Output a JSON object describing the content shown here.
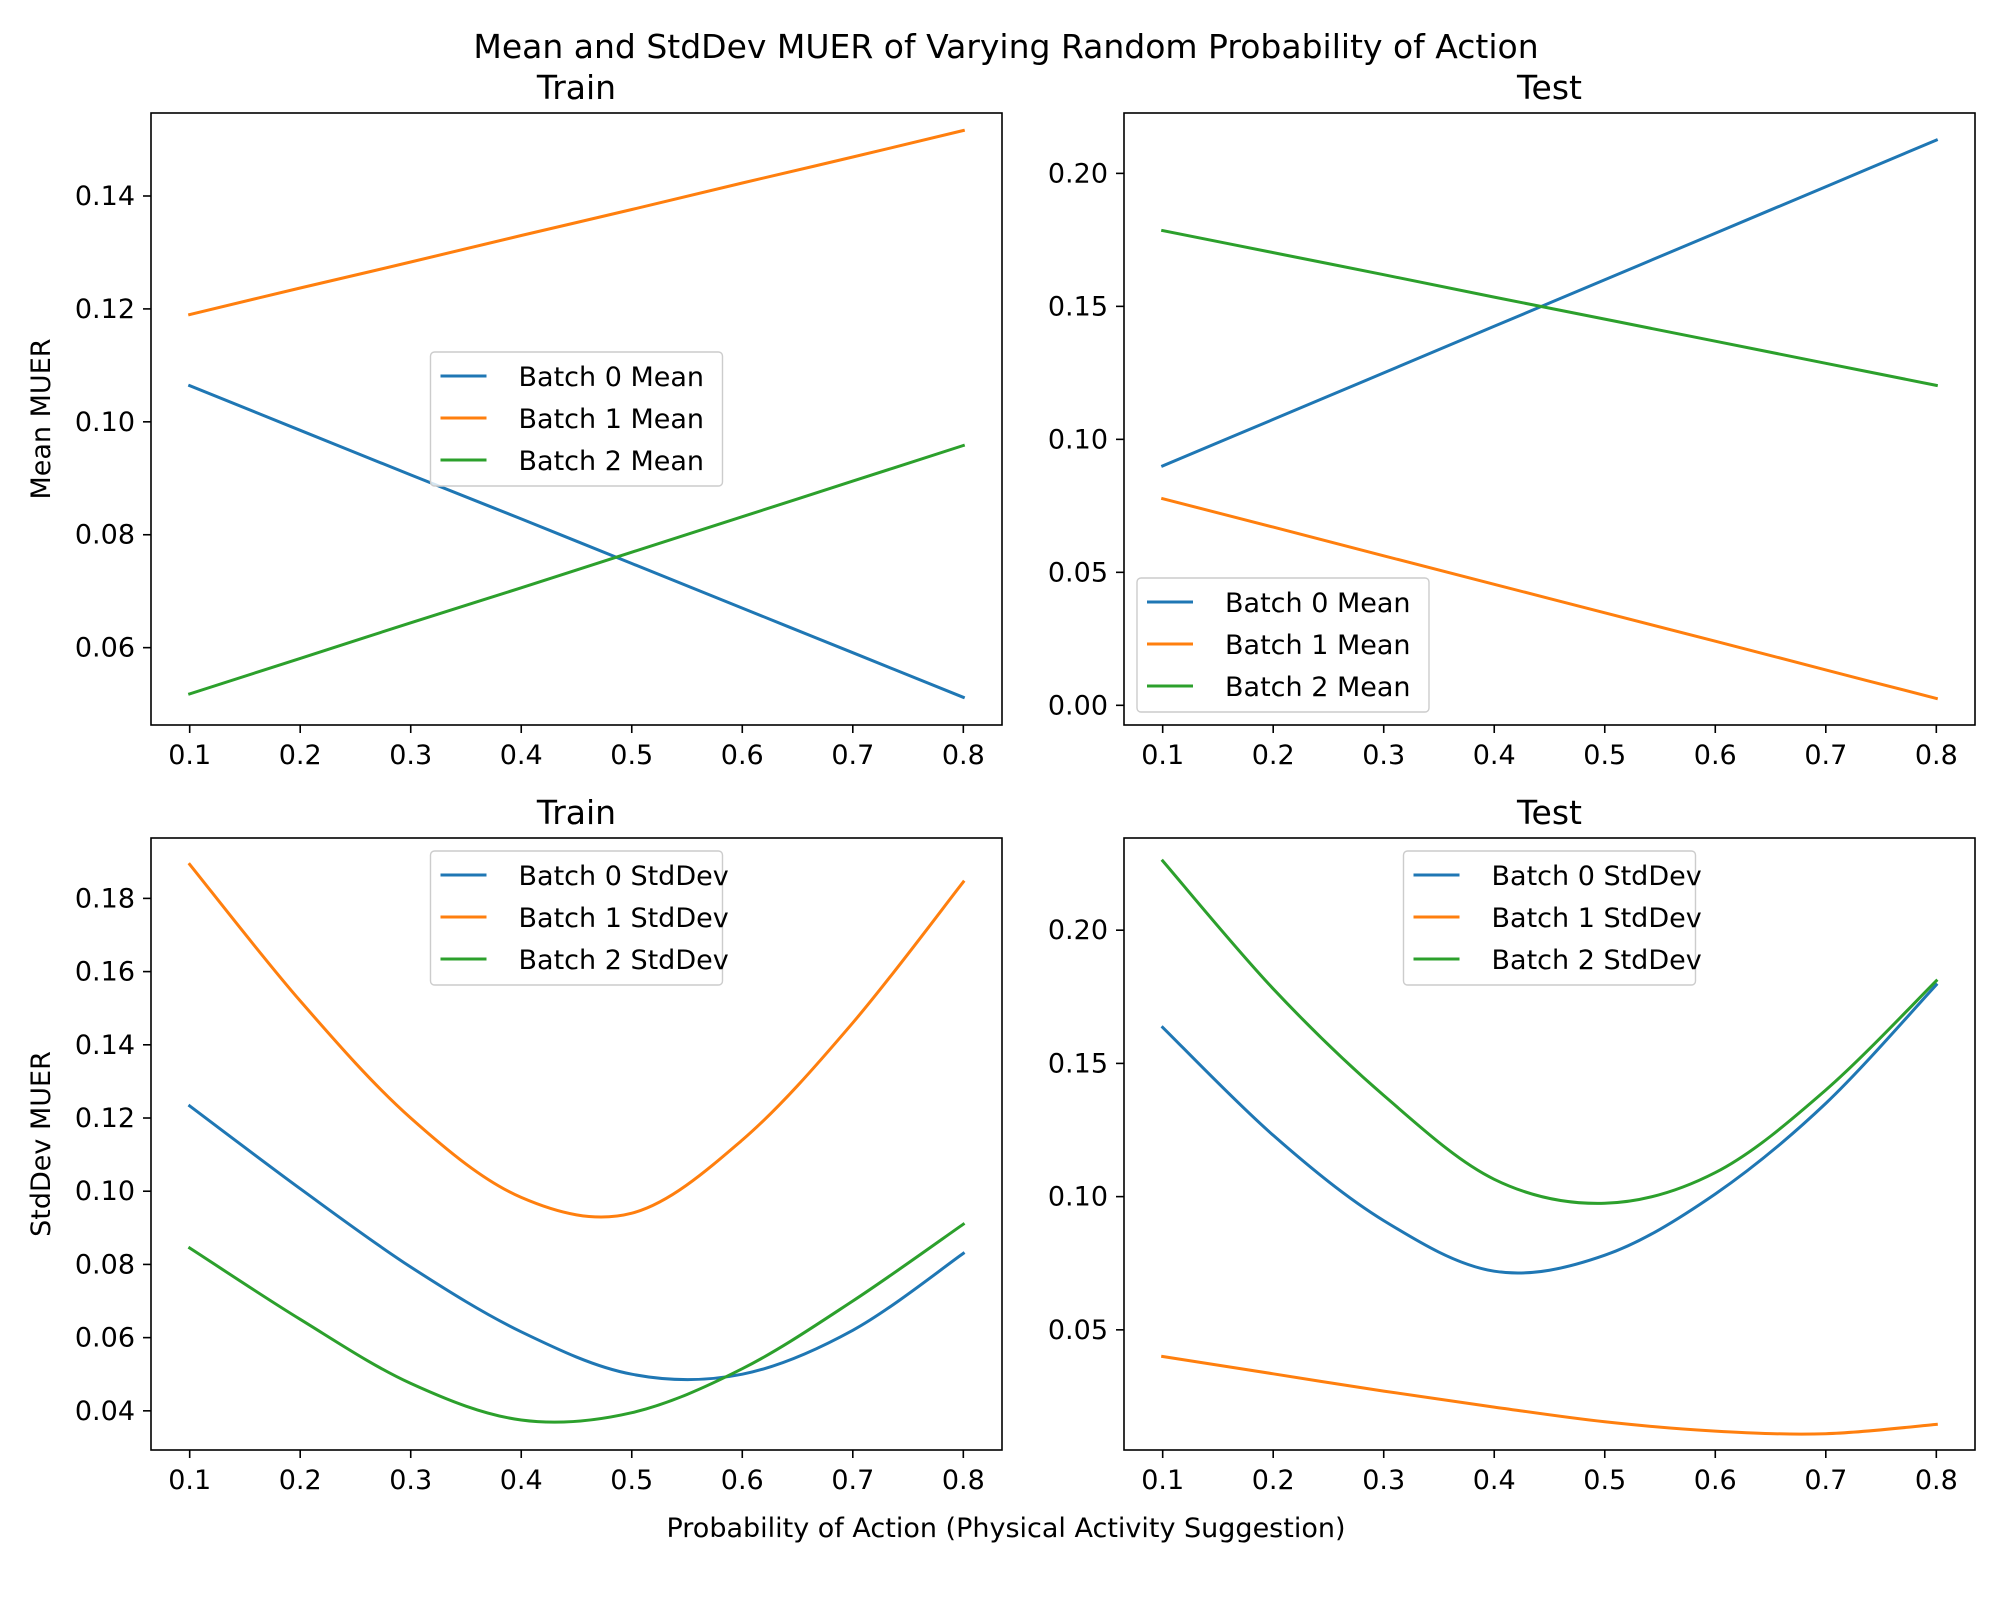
{
  "figure": {
    "suptitle": "Mean and StdDev MUER of Varying Random Probability of Action",
    "xlabel": "Probability of Action (Physical Activity Suggestion)"
  },
  "colors": {
    "batch0": "#1f77b4",
    "batch1": "#ff7f0e",
    "batch2": "#2ca02c"
  },
  "chart_data": [
    {
      "type": "line",
      "title": "Train",
      "ylabel": "Mean MUER",
      "xlim": [
        0.065,
        0.835
      ],
      "ylim": [
        0.0463,
        0.1547
      ],
      "xticks": [
        0.1,
        0.2,
        0.3,
        0.4,
        0.5,
        0.6,
        0.7,
        0.8
      ],
      "yticks": [
        0.06,
        0.08,
        0.1,
        0.12,
        0.14
      ],
      "ytick_labels": [
        "0.06",
        "0.08",
        "0.10",
        "0.12",
        "0.14"
      ],
      "legend_loc": "center",
      "x": [
        0.1,
        0.2,
        0.3,
        0.4,
        0.5,
        0.6,
        0.7,
        0.8
      ],
      "series": [
        {
          "name": "Batch 0 Mean",
          "color": "#1f77b4",
          "values": [
            0.1064,
            0.0985,
            0.0906,
            0.0828,
            0.0749,
            0.067,
            0.0591,
            0.0512
          ]
        },
        {
          "name": "Batch 1 Mean",
          "color": "#ff7f0e",
          "values": [
            0.119,
            0.1237,
            0.1283,
            0.133,
            0.1376,
            0.1423,
            0.1469,
            0.1516
          ]
        },
        {
          "name": "Batch 2 Mean",
          "color": "#2ca02c",
          "values": [
            0.0518,
            0.0581,
            0.0644,
            0.0706,
            0.0769,
            0.0832,
            0.0895,
            0.0958
          ]
        }
      ]
    },
    {
      "type": "line",
      "title": "Test",
      "ylabel": "",
      "xlim": [
        0.065,
        0.835
      ],
      "ylim": [
        -0.0074,
        0.2227
      ],
      "xticks": [
        0.1,
        0.2,
        0.3,
        0.4,
        0.5,
        0.6,
        0.7,
        0.8
      ],
      "yticks": [
        0.0,
        0.05,
        0.1,
        0.15,
        0.2
      ],
      "ytick_labels": [
        "0.00",
        "0.05",
        "0.10",
        "0.15",
        "0.20"
      ],
      "legend_loc": "lower left",
      "x": [
        0.1,
        0.2,
        0.3,
        0.4,
        0.5,
        0.6,
        0.7,
        0.8
      ],
      "series": [
        {
          "name": "Batch 0 Mean",
          "color": "#1f77b4",
          "values": [
            0.09,
            0.1075,
            0.125,
            0.1425,
            0.16,
            0.1775,
            0.195,
            0.2125
          ]
        },
        {
          "name": "Batch 1 Mean",
          "color": "#ff7f0e",
          "values": [
            0.0777,
            0.067,
            0.0562,
            0.0455,
            0.0348,
            0.0241,
            0.0133,
            0.0026
          ]
        },
        {
          "name": "Batch 2 Mean",
          "color": "#2ca02c",
          "values": [
            0.1785,
            0.1702,
            0.1619,
            0.1535,
            0.1452,
            0.1369,
            0.1286,
            0.1203
          ]
        }
      ]
    },
    {
      "type": "line",
      "title": "Train",
      "ylabel": "StdDev MUER",
      "xlim": [
        0.065,
        0.835
      ],
      "ylim": [
        0.0293,
        0.1965
      ],
      "xticks": [
        0.1,
        0.2,
        0.3,
        0.4,
        0.5,
        0.6,
        0.7,
        0.8
      ],
      "yticks": [
        0.04,
        0.06,
        0.08,
        0.1,
        0.12,
        0.14,
        0.16,
        0.18
      ],
      "ytick_labels": [
        "0.04",
        "0.06",
        "0.08",
        "0.10",
        "0.12",
        "0.14",
        "0.16",
        "0.18"
      ],
      "legend_loc": "upper center",
      "x": [
        0.1,
        0.2,
        0.3,
        0.4,
        0.5,
        0.6,
        0.7,
        0.8
      ],
      "series": [
        {
          "name": "Batch 0 StdDev",
          "color": "#1f77b4",
          "values": [
            0.1233,
            0.1007,
            0.0793,
            0.0616,
            0.05,
            0.05,
            0.062,
            0.083
          ]
        },
        {
          "name": "Batch 1 StdDev",
          "color": "#ff7f0e",
          "values": [
            0.1893,
            0.152,
            0.12,
            0.0983,
            0.094,
            0.114,
            0.146,
            0.1845
          ]
        },
        {
          "name": "Batch 2 StdDev",
          "color": "#2ca02c",
          "values": [
            0.0845,
            0.065,
            0.0475,
            0.0375,
            0.0395,
            0.0515,
            0.07,
            0.091
          ]
        }
      ]
    },
    {
      "type": "line",
      "title": "Test",
      "ylabel": "",
      "xlim": [
        0.065,
        0.835
      ],
      "ylim": [
        0.0049,
        0.2346
      ],
      "xticks": [
        0.1,
        0.2,
        0.3,
        0.4,
        0.5,
        0.6,
        0.7,
        0.8
      ],
      "yticks": [
        0.05,
        0.1,
        0.15,
        0.2
      ],
      "ytick_labels": [
        "0.05",
        "0.10",
        "0.15",
        "0.20"
      ],
      "legend_loc": "upper center",
      "x": [
        0.1,
        0.2,
        0.3,
        0.4,
        0.5,
        0.6,
        0.7,
        0.8
      ],
      "series": [
        {
          "name": "Batch 0 StdDev",
          "color": "#1f77b4",
          "values": [
            0.1635,
            0.123,
            0.091,
            0.072,
            0.078,
            0.101,
            0.135,
            0.1795
          ]
        },
        {
          "name": "Batch 1 StdDev",
          "color": "#ff7f0e",
          "values": [
            0.04,
            0.0335,
            0.027,
            0.021,
            0.0155,
            0.012,
            0.011,
            0.0145
          ]
        },
        {
          "name": "Batch 2 StdDev",
          "color": "#2ca02c",
          "values": [
            0.226,
            0.178,
            0.138,
            0.1065,
            0.0975,
            0.109,
            0.14,
            0.181
          ]
        }
      ]
    }
  ]
}
